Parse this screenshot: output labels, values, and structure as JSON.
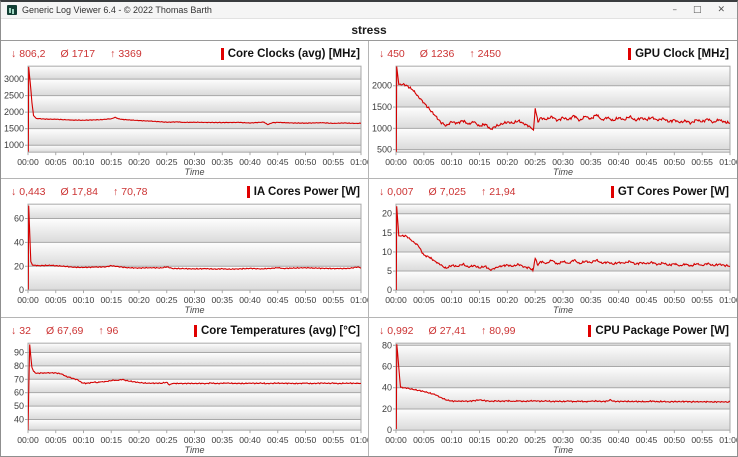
{
  "window": {
    "title": "Generic Log Viewer 6.4 - © 2022 Thomas Barth",
    "controls": {
      "minimize": "–",
      "maximize": "□",
      "close": "✕"
    }
  },
  "header": {
    "title": "stress"
  },
  "stats_symbols": {
    "min": "↓",
    "avg": "Ø",
    "max": "↑"
  },
  "colors": {
    "line": "#d40000",
    "stats_text": "#cc3333",
    "grid": "#a8a8a8",
    "axis_text": "#3c3c3c",
    "band_top": "#fefefe",
    "band_bottom": "#dadada",
    "legend_bar": "#e00000"
  },
  "time_axis": {
    "label": "Time",
    "xmin": 0,
    "xmax": 60,
    "ticks": [
      "00:00",
      "00:05",
      "00:10",
      "00:15",
      "00:20",
      "00:25",
      "00:30",
      "00:35",
      "00:40",
      "00:45",
      "00:50",
      "00:55",
      "01:00"
    ]
  },
  "chart_data": {
    "note": "see charts[] — type line, x = minutes elapsed"
  },
  "charts": [
    {
      "title": "Core Clocks (avg) [MHz]",
      "min": "806,2",
      "avg": "1717",
      "max": "3369",
      "ylim": [
        790,
        3390
      ],
      "y_ticks": [
        1000,
        1500,
        2000,
        2500,
        3000
      ],
      "noise": 10,
      "keypoints": [
        [
          0,
          1600
        ],
        [
          0.05,
          806
        ],
        [
          0.12,
          3369
        ],
        [
          0.4,
          2900
        ],
        [
          0.7,
          2300
        ],
        [
          1,
          1900
        ],
        [
          1.5,
          1810
        ],
        [
          3,
          1790
        ],
        [
          5,
          1785
        ],
        [
          8,
          1760
        ],
        [
          10,
          1755
        ],
        [
          13,
          1770
        ],
        [
          15,
          1800
        ],
        [
          15.7,
          1845
        ],
        [
          16.3,
          1800
        ],
        [
          17,
          1780
        ],
        [
          20,
          1745
        ],
        [
          22,
          1730
        ],
        [
          25,
          1695
        ],
        [
          27,
          1705
        ],
        [
          28,
          1690
        ],
        [
          30,
          1695
        ],
        [
          32,
          1690
        ],
        [
          35,
          1685
        ],
        [
          38,
          1690
        ],
        [
          40,
          1672
        ],
        [
          42.5,
          1700
        ],
        [
          43.2,
          1620
        ],
        [
          44,
          1680
        ],
        [
          45,
          1690
        ],
        [
          48,
          1672
        ],
        [
          50,
          1668
        ],
        [
          53,
          1680
        ],
        [
          55,
          1660
        ],
        [
          57,
          1672
        ],
        [
          59,
          1660
        ],
        [
          60,
          1665
        ]
      ]
    },
    {
      "title": "GPU Clock [MHz]",
      "min": "450",
      "avg": "1236",
      "max": "2450",
      "ylim": [
        440,
        2460
      ],
      "y_ticks": [
        500,
        1000,
        1500,
        2000
      ],
      "noise": 35,
      "keypoints": [
        [
          0,
          1200
        ],
        [
          0.05,
          450
        ],
        [
          0.12,
          2450
        ],
        [
          0.5,
          2030
        ],
        [
          1.5,
          2030
        ],
        [
          2,
          2000
        ],
        [
          3,
          1900
        ],
        [
          4,
          1750
        ],
        [
          5,
          1600
        ],
        [
          6,
          1450
        ],
        [
          7,
          1300
        ],
        [
          8,
          1150
        ],
        [
          9,
          1060
        ],
        [
          10,
          1150
        ],
        [
          11,
          1120
        ],
        [
          12,
          1180
        ],
        [
          13,
          1100
        ],
        [
          14,
          1150
        ],
        [
          15,
          1050
        ],
        [
          16,
          1100
        ],
        [
          17,
          980
        ],
        [
          18,
          1050
        ],
        [
          19,
          1100
        ],
        [
          20,
          1150
        ],
        [
          21,
          1120
        ],
        [
          22,
          1180
        ],
        [
          23,
          1100
        ],
        [
          24,
          1050
        ],
        [
          24.7,
          960
        ],
        [
          25,
          1470
        ],
        [
          25.5,
          1150
        ],
        [
          26,
          1250
        ],
        [
          27,
          1200
        ],
        [
          28,
          1280
        ],
        [
          29,
          1180
        ],
        [
          30,
          1250
        ],
        [
          31,
          1200
        ],
        [
          32,
          1300
        ],
        [
          33,
          1180
        ],
        [
          34,
          1280
        ],
        [
          35,
          1220
        ],
        [
          36,
          1320
        ],
        [
          37,
          1200
        ],
        [
          38,
          1250
        ],
        [
          39,
          1180
        ],
        [
          40,
          1250
        ],
        [
          41,
          1200
        ],
        [
          42,
          1280
        ],
        [
          43,
          1180
        ],
        [
          44,
          1250
        ],
        [
          45,
          1200
        ],
        [
          46,
          1260
        ],
        [
          47,
          1180
        ],
        [
          48,
          1240
        ],
        [
          49,
          1150
        ],
        [
          50,
          1200
        ],
        [
          51,
          1130
        ],
        [
          52,
          1180
        ],
        [
          53,
          1120
        ],
        [
          54,
          1200
        ],
        [
          55,
          1150
        ],
        [
          56,
          1220
        ],
        [
          57,
          1140
        ],
        [
          58,
          1200
        ],
        [
          59,
          1150
        ],
        [
          60,
          1120
        ]
      ]
    },
    {
      "title": "IA Cores Power [W]",
      "min": "0,443",
      "avg": "17,84",
      "max": "70,78",
      "ylim": [
        0,
        72
      ],
      "y_ticks": [
        0,
        20,
        40,
        60
      ],
      "noise": 0.45,
      "keypoints": [
        [
          0,
          18
        ],
        [
          0.05,
          0.45
        ],
        [
          0.12,
          70.78
        ],
        [
          0.5,
          24
        ],
        [
          0.8,
          21
        ],
        [
          2,
          20.5
        ],
        [
          4,
          20.8
        ],
        [
          5,
          20.5
        ],
        [
          7,
          19.8
        ],
        [
          8,
          19.2
        ],
        [
          10,
          19.0
        ],
        [
          12,
          19.3
        ],
        [
          14,
          19.5
        ],
        [
          15,
          20.5
        ],
        [
          16,
          19.8
        ],
        [
          18,
          18.8
        ],
        [
          20,
          18.5
        ],
        [
          22,
          18.8
        ],
        [
          24,
          18.6
        ],
        [
          25,
          19.5
        ],
        [
          26,
          18.2
        ],
        [
          28,
          18.0
        ],
        [
          30,
          17.8
        ],
        [
          32,
          18.0
        ],
        [
          34,
          17.6
        ],
        [
          35,
          18.0
        ],
        [
          36,
          17.5
        ],
        [
          38,
          17.8
        ],
        [
          40,
          18.2
        ],
        [
          42,
          17.8
        ],
        [
          44,
          18.3
        ],
        [
          45,
          18.8
        ],
        [
          46,
          18.2
        ],
        [
          48,
          18.5
        ],
        [
          50,
          18.8
        ],
        [
          52,
          18.4
        ],
        [
          54,
          18.2
        ],
        [
          56,
          18.0
        ],
        [
          58,
          18.3
        ],
        [
          59.5,
          19.5
        ],
        [
          60,
          18.5
        ]
      ]
    },
    {
      "title": "GT Cores Power [W]",
      "min": "0,007",
      "avg": "7,025",
      "max": "21,94",
      "ylim": [
        0,
        22.5
      ],
      "y_ticks": [
        0,
        5,
        10,
        15,
        20
      ],
      "noise": 0.3,
      "keypoints": [
        [
          0,
          6
        ],
        [
          0.05,
          0.05
        ],
        [
          0.12,
          21.94
        ],
        [
          0.5,
          14.2
        ],
        [
          1.8,
          14.2
        ],
        [
          3,
          12.8
        ],
        [
          4,
          11.6
        ],
        [
          5,
          9.2
        ],
        [
          6,
          8.6
        ],
        [
          7,
          7.6
        ],
        [
          8,
          6.6
        ],
        [
          9,
          5.7
        ],
        [
          10,
          6.5
        ],
        [
          11,
          6.2
        ],
        [
          12,
          6.8
        ],
        [
          13,
          6.0
        ],
        [
          14,
          6.5
        ],
        [
          15,
          5.8
        ],
        [
          16,
          6.3
        ],
        [
          17,
          5.2
        ],
        [
          18,
          6.0
        ],
        [
          19,
          6.3
        ],
        [
          20,
          6.6
        ],
        [
          21,
          6.2
        ],
        [
          22,
          6.8
        ],
        [
          23,
          6.1
        ],
        [
          24,
          5.8
        ],
        [
          24.6,
          5.1
        ],
        [
          25,
          8.3
        ],
        [
          25.5,
          6.5
        ],
        [
          26,
          7.5
        ],
        [
          27,
          7.0
        ],
        [
          28,
          7.8
        ],
        [
          29,
          6.8
        ],
        [
          30,
          7.5
        ],
        [
          31,
          7.0
        ],
        [
          32,
          7.9
        ],
        [
          33,
          6.9
        ],
        [
          34,
          7.6
        ],
        [
          35,
          7.2
        ],
        [
          36,
          7.9
        ],
        [
          37,
          7.0
        ],
        [
          38,
          7.4
        ],
        [
          39,
          6.8
        ],
        [
          40,
          7.3
        ],
        [
          41,
          7.0
        ],
        [
          42,
          7.6
        ],
        [
          43,
          6.8
        ],
        [
          44,
          7.2
        ],
        [
          45,
          6.9
        ],
        [
          46,
          7.3
        ],
        [
          47,
          6.7
        ],
        [
          48,
          7.1
        ],
        [
          49,
          6.5
        ],
        [
          50,
          6.9
        ],
        [
          51,
          6.4
        ],
        [
          52,
          6.8
        ],
        [
          53,
          6.3
        ],
        [
          54,
          6.9
        ],
        [
          55,
          6.5
        ],
        [
          56,
          7.0
        ],
        [
          57,
          6.4
        ],
        [
          58,
          6.8
        ],
        [
          59,
          6.5
        ],
        [
          60,
          6.3
        ]
      ]
    },
    {
      "title": "Core Temperatures (avg) [°C]",
      "min": "32",
      "avg": "67,69",
      "max": "96",
      "ylim": [
        32,
        97
      ],
      "y_ticks": [
        40,
        50,
        60,
        70,
        80,
        90
      ],
      "noise": 0.45,
      "keypoints": [
        [
          0,
          32
        ],
        [
          0.3,
          96
        ],
        [
          0.7,
          79
        ],
        [
          1,
          76
        ],
        [
          1.5,
          74.5
        ],
        [
          3,
          74.8
        ],
        [
          5,
          74.8
        ],
        [
          6,
          74
        ],
        [
          7,
          72
        ],
        [
          7.5,
          71.5
        ],
        [
          8,
          70.8
        ],
        [
          9,
          69.5
        ],
        [
          9.7,
          67.3
        ],
        [
          10.5,
          67
        ],
        [
          11,
          67.2
        ],
        [
          12,
          68
        ],
        [
          12.5,
          67.5
        ],
        [
          13,
          68
        ],
        [
          14,
          68.3
        ],
        [
          15,
          69
        ],
        [
          15.5,
          69.3
        ],
        [
          16,
          69.2
        ],
        [
          17,
          69.8
        ],
        [
          17.5,
          69.3
        ],
        [
          18,
          68.8
        ],
        [
          19,
          68.2
        ],
        [
          20,
          67.6
        ],
        [
          21,
          67.2
        ],
        [
          22,
          67
        ],
        [
          23,
          67.2
        ],
        [
          24,
          67
        ],
        [
          25,
          67.8
        ],
        [
          25.5,
          65.8
        ],
        [
          26,
          66.8
        ],
        [
          27,
          67
        ],
        [
          28,
          66.8
        ],
        [
          29,
          67
        ],
        [
          30,
          66.8
        ],
        [
          31,
          67
        ],
        [
          32,
          66.8
        ],
        [
          33,
          67.2
        ],
        [
          34,
          66.8
        ],
        [
          35,
          67
        ],
        [
          36,
          67.3
        ],
        [
          37,
          66.8
        ],
        [
          38,
          67
        ],
        [
          39,
          66.8
        ],
        [
          40,
          67.2
        ],
        [
          41,
          66.9
        ],
        [
          42,
          67.1
        ],
        [
          43,
          66.8
        ],
        [
          44,
          67
        ],
        [
          45,
          67.2
        ],
        [
          46,
          66.9
        ],
        [
          47,
          67.1
        ],
        [
          48,
          66.8
        ],
        [
          49,
          67
        ],
        [
          50,
          67.1
        ],
        [
          51,
          66.8
        ],
        [
          52,
          67
        ],
        [
          53,
          67.2
        ],
        [
          54,
          66.9
        ],
        [
          55,
          67.1
        ],
        [
          56,
          66.8
        ],
        [
          57,
          67
        ],
        [
          58,
          67.1
        ],
        [
          59,
          66.9
        ],
        [
          60,
          67
        ]
      ]
    },
    {
      "title": "CPU Package Power [W]",
      "min": "0,992",
      "avg": "27,41",
      "max": "80,99",
      "ylim": [
        0,
        82
      ],
      "y_ticks": [
        0,
        20,
        40,
        60,
        80
      ],
      "noise": 0.7,
      "keypoints": [
        [
          0,
          25
        ],
        [
          0.05,
          1
        ],
        [
          0.15,
          80.99
        ],
        [
          0.8,
          40.5
        ],
        [
          1.5,
          40
        ],
        [
          2,
          39.5
        ],
        [
          3,
          38.5
        ],
        [
          4,
          37.5
        ],
        [
          5,
          36.5
        ],
        [
          6,
          35
        ],
        [
          7,
          33.5
        ],
        [
          8,
          31
        ],
        [
          9,
          28.5
        ],
        [
          10,
          27.5
        ],
        [
          11,
          27.2
        ],
        [
          12,
          27.5
        ],
        [
          13,
          27.2
        ],
        [
          14,
          27.8
        ],
        [
          15,
          28.5
        ],
        [
          16,
          27.8
        ],
        [
          17,
          27.2
        ],
        [
          18,
          27.5
        ],
        [
          19,
          27.2
        ],
        [
          20,
          27.6
        ],
        [
          21,
          27.2
        ],
        [
          22,
          27.5
        ],
        [
          23,
          27.1
        ],
        [
          24,
          27.4
        ],
        [
          25,
          27.8
        ],
        [
          26,
          27.2
        ],
        [
          27,
          27.5
        ],
        [
          28,
          27
        ],
        [
          29,
          27.3
        ],
        [
          30,
          27
        ],
        [
          31,
          27.4
        ],
        [
          32,
          27
        ],
        [
          33,
          27.3
        ],
        [
          34,
          26.9
        ],
        [
          35,
          27.2
        ],
        [
          36,
          27.5
        ],
        [
          37,
          27
        ],
        [
          38,
          27.3
        ],
        [
          38.5,
          28.8
        ],
        [
          39,
          27.2
        ],
        [
          40,
          27
        ],
        [
          41,
          27.3
        ],
        [
          42,
          26.9
        ],
        [
          43,
          27.1
        ],
        [
          44,
          26.8
        ],
        [
          45,
          27
        ],
        [
          46,
          27.3
        ],
        [
          47,
          26.8
        ],
        [
          48,
          27
        ],
        [
          49,
          26.7
        ],
        [
          50,
          27
        ],
        [
          51,
          26.8
        ],
        [
          52,
          27.1
        ],
        [
          53,
          26.7
        ],
        [
          54,
          26.9
        ],
        [
          55,
          26.6
        ],
        [
          56,
          26.9
        ],
        [
          57,
          26.5
        ],
        [
          58,
          26.8
        ],
        [
          59,
          26.5
        ],
        [
          60,
          26.6
        ]
      ]
    }
  ]
}
